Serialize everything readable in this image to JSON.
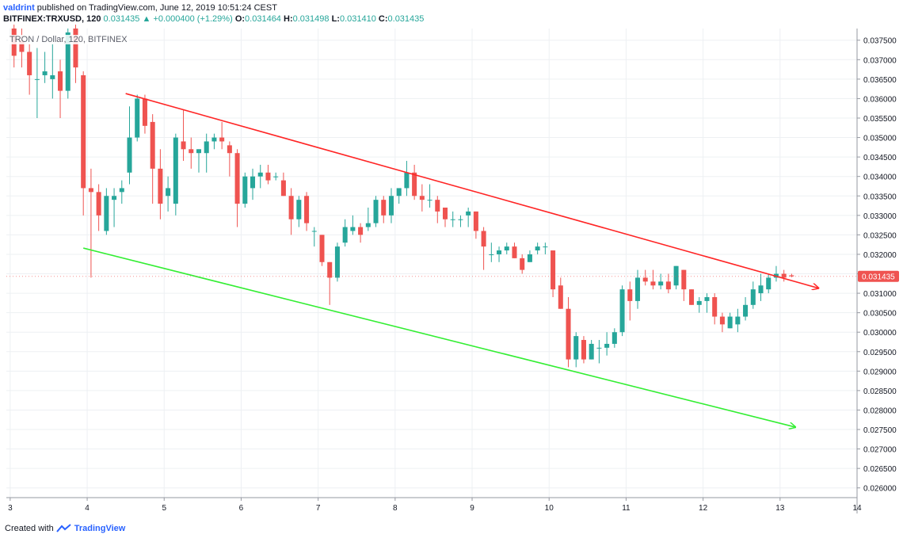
{
  "header": {
    "author": "valdrint",
    "published_text": "published on TradingView.com, June 12, 2019 10:51:24 CEST",
    "symbol": "BITFINEX:TRXUSD, 120",
    "last": "0.031435",
    "change": "+0.000400 (+1.29%)",
    "open_label": "O:",
    "open": "0.031464",
    "high_label": "H:",
    "high": "0.031498",
    "low_label": "L:",
    "low": "0.031410",
    "close_label": "C:",
    "close": "0.031435"
  },
  "legend_text": "TRON / Dollar, 120, BITFINEX",
  "footer": {
    "created_with": "Created with",
    "brand": "TradingView"
  },
  "chart_data": {
    "type": "candlestick",
    "x_ticks": [
      "3",
      "4",
      "5",
      "6",
      "7",
      "8",
      "9",
      "10",
      "11",
      "12",
      "13",
      "14"
    ],
    "y_ticks": [
      "0.037500",
      "0.037000",
      "0.036500",
      "0.036000",
      "0.035500",
      "0.035000",
      "0.034500",
      "0.034000",
      "0.033500",
      "0.033000",
      "0.032500",
      "0.032000",
      "0.031500",
      "0.031000",
      "0.030500",
      "0.030000",
      "0.029500",
      "0.029000",
      "0.028500",
      "0.028000",
      "0.027500",
      "0.027000",
      "0.026500",
      "0.026000"
    ],
    "ylim": [
      0.02575,
      0.0378
    ],
    "xlim": [
      2.95,
      14.0
    ],
    "current_price_label": "0.031435",
    "colors": {
      "up": "#26a69a",
      "down": "#ef5350",
      "upper_line": "#ff2525",
      "lower_line": "#33ee33",
      "price_tag": "#ef5350"
    },
    "candles": [
      {
        "t": 3.05,
        "o": 0.0378,
        "h": 0.0379,
        "l": 0.0368,
        "c": 0.0371
      },
      {
        "t": 3.15,
        "o": 0.0375,
        "h": 0.0378,
        "l": 0.0368,
        "c": 0.0372
      },
      {
        "t": 3.25,
        "o": 0.0372,
        "h": 0.0374,
        "l": 0.0361,
        "c": 0.0366
      },
      {
        "t": 3.35,
        "o": 0.0365,
        "h": 0.0373,
        "l": 0.0355,
        "c": 0.0365
      },
      {
        "t": 3.45,
        "o": 0.0366,
        "h": 0.0372,
        "l": 0.0364,
        "c": 0.0367
      },
      {
        "t": 3.55,
        "o": 0.0365,
        "h": 0.0374,
        "l": 0.036,
        "c": 0.0366
      },
      {
        "t": 3.65,
        "o": 0.0367,
        "h": 0.037,
        "l": 0.0355,
        "c": 0.0362
      },
      {
        "t": 3.75,
        "o": 0.0362,
        "h": 0.0378,
        "l": 0.036,
        "c": 0.0377
      },
      {
        "t": 3.85,
        "o": 0.0378,
        "h": 0.0379,
        "l": 0.0364,
        "c": 0.0368
      },
      {
        "t": 3.95,
        "o": 0.0366,
        "h": 0.0367,
        "l": 0.033,
        "c": 0.0337
      },
      {
        "t": 4.05,
        "o": 0.0337,
        "h": 0.0342,
        "l": 0.0314,
        "c": 0.0336
      },
      {
        "t": 4.15,
        "o": 0.0336,
        "h": 0.0338,
        "l": 0.0326,
        "c": 0.033
      },
      {
        "t": 4.25,
        "o": 0.0326,
        "h": 0.0337,
        "l": 0.0325,
        "c": 0.0335
      },
      {
        "t": 4.35,
        "o": 0.0334,
        "h": 0.0337,
        "l": 0.0327,
        "c": 0.0335
      },
      {
        "t": 4.45,
        "o": 0.0336,
        "h": 0.0339,
        "l": 0.0333,
        "c": 0.0337
      },
      {
        "t": 4.55,
        "o": 0.0341,
        "h": 0.0358,
        "l": 0.0338,
        "c": 0.035
      },
      {
        "t": 4.65,
        "o": 0.035,
        "h": 0.0361,
        "l": 0.0349,
        "c": 0.036
      },
      {
        "t": 4.75,
        "o": 0.036,
        "h": 0.0361,
        "l": 0.0351,
        "c": 0.0353
      },
      {
        "t": 4.85,
        "o": 0.0354,
        "h": 0.0356,
        "l": 0.0333,
        "c": 0.0342
      },
      {
        "t": 4.95,
        "o": 0.0342,
        "h": 0.0347,
        "l": 0.0329,
        "c": 0.0333
      },
      {
        "t": 5.05,
        "o": 0.0335,
        "h": 0.034,
        "l": 0.0331,
        "c": 0.0337
      },
      {
        "t": 5.15,
        "o": 0.0333,
        "h": 0.0351,
        "l": 0.033,
        "c": 0.035
      },
      {
        "t": 5.25,
        "o": 0.0349,
        "h": 0.0357,
        "l": 0.0344,
        "c": 0.0347
      },
      {
        "t": 5.35,
        "o": 0.0347,
        "h": 0.035,
        "l": 0.0342,
        "c": 0.0346
      },
      {
        "t": 5.45,
        "o": 0.0346,
        "h": 0.0347,
        "l": 0.0341,
        "c": 0.0347
      },
      {
        "t": 5.55,
        "o": 0.0346,
        "h": 0.0351,
        "l": 0.0341,
        "c": 0.0349
      },
      {
        "t": 5.65,
        "o": 0.0349,
        "h": 0.0351,
        "l": 0.0347,
        "c": 0.035
      },
      {
        "t": 5.75,
        "o": 0.035,
        "h": 0.0354,
        "l": 0.0347,
        "c": 0.0349
      },
      {
        "t": 5.85,
        "o": 0.0348,
        "h": 0.0349,
        "l": 0.034,
        "c": 0.0346
      },
      {
        "t": 5.95,
        "o": 0.0346,
        "h": 0.0347,
        "l": 0.0327,
        "c": 0.0333
      },
      {
        "t": 6.05,
        "o": 0.0333,
        "h": 0.0341,
        "l": 0.0332,
        "c": 0.034
      },
      {
        "t": 6.15,
        "o": 0.0337,
        "h": 0.0342,
        "l": 0.0334,
        "c": 0.034
      },
      {
        "t": 6.25,
        "o": 0.034,
        "h": 0.0343,
        "l": 0.0337,
        "c": 0.0341
      },
      {
        "t": 6.35,
        "o": 0.0341,
        "h": 0.0343,
        "l": 0.0338,
        "c": 0.0339
      },
      {
        "t": 6.45,
        "o": 0.034,
        "h": 0.0341,
        "l": 0.0339,
        "c": 0.034
      },
      {
        "t": 6.55,
        "o": 0.0339,
        "h": 0.0341,
        "l": 0.0335,
        "c": 0.0335
      },
      {
        "t": 6.65,
        "o": 0.0335,
        "h": 0.0337,
        "l": 0.0325,
        "c": 0.0329
      },
      {
        "t": 6.75,
        "o": 0.0329,
        "h": 0.0335,
        "l": 0.0327,
        "c": 0.0334
      },
      {
        "t": 6.85,
        "o": 0.0335,
        "h": 0.0336,
        "l": 0.0326,
        "c": 0.0328
      },
      {
        "t": 6.95,
        "o": 0.0326,
        "h": 0.0327,
        "l": 0.0322,
        "c": 0.0326
      },
      {
        "t": 7.05,
        "o": 0.0325,
        "h": 0.0325,
        "l": 0.0317,
        "c": 0.0318
      },
      {
        "t": 7.15,
        "o": 0.0318,
        "h": 0.0318,
        "l": 0.0307,
        "c": 0.0314
      },
      {
        "t": 7.25,
        "o": 0.0314,
        "h": 0.0323,
        "l": 0.0313,
        "c": 0.0322
      },
      {
        "t": 7.35,
        "o": 0.0323,
        "h": 0.0329,
        "l": 0.0322,
        "c": 0.0327
      },
      {
        "t": 7.45,
        "o": 0.0326,
        "h": 0.033,
        "l": 0.0325,
        "c": 0.0327
      },
      {
        "t": 7.55,
        "o": 0.0327,
        "h": 0.0328,
        "l": 0.0323,
        "c": 0.0325
      },
      {
        "t": 7.65,
        "o": 0.0327,
        "h": 0.0332,
        "l": 0.0326,
        "c": 0.0328
      },
      {
        "t": 7.75,
        "o": 0.0328,
        "h": 0.0335,
        "l": 0.0327,
        "c": 0.0334
      },
      {
        "t": 7.85,
        "o": 0.0334,
        "h": 0.0335,
        "l": 0.0328,
        "c": 0.033
      },
      {
        "t": 7.95,
        "o": 0.033,
        "h": 0.0337,
        "l": 0.0328,
        "c": 0.0335
      },
      {
        "t": 8.05,
        "o": 0.0335,
        "h": 0.0336,
        "l": 0.0333,
        "c": 0.0337
      },
      {
        "t": 8.15,
        "o": 0.0337,
        "h": 0.0344,
        "l": 0.0335,
        "c": 0.0341
      },
      {
        "t": 8.25,
        "o": 0.0341,
        "h": 0.0343,
        "l": 0.0334,
        "c": 0.0335
      },
      {
        "t": 8.35,
        "o": 0.0335,
        "h": 0.0338,
        "l": 0.0331,
        "c": 0.0334
      },
      {
        "t": 8.45,
        "o": 0.0334,
        "h": 0.0338,
        "l": 0.0332,
        "c": 0.0334
      },
      {
        "t": 8.55,
        "o": 0.0334,
        "h": 0.0335,
        "l": 0.0328,
        "c": 0.0331
      },
      {
        "t": 8.65,
        "o": 0.0332,
        "h": 0.0332,
        "l": 0.0327,
        "c": 0.0329
      },
      {
        "t": 8.75,
        "o": 0.0329,
        "h": 0.0331,
        "l": 0.0327,
        "c": 0.0329
      },
      {
        "t": 8.85,
        "o": 0.0329,
        "h": 0.033,
        "l": 0.0327,
        "c": 0.0329
      },
      {
        "t": 8.95,
        "o": 0.033,
        "h": 0.0332,
        "l": 0.0327,
        "c": 0.0331
      },
      {
        "t": 9.05,
        "o": 0.0331,
        "h": 0.0331,
        "l": 0.0324,
        "c": 0.0326
      },
      {
        "t": 9.15,
        "o": 0.0326,
        "h": 0.0327,
        "l": 0.0316,
        "c": 0.0322
      },
      {
        "t": 9.25,
        "o": 0.032,
        "h": 0.0323,
        "l": 0.0318,
        "c": 0.032
      },
      {
        "t": 9.35,
        "o": 0.032,
        "h": 0.0322,
        "l": 0.0318,
        "c": 0.0321
      },
      {
        "t": 9.45,
        "o": 0.0321,
        "h": 0.0323,
        "l": 0.032,
        "c": 0.0322
      },
      {
        "t": 9.55,
        "o": 0.0322,
        "h": 0.0323,
        "l": 0.0319,
        "c": 0.0319
      },
      {
        "t": 9.65,
        "o": 0.0319,
        "h": 0.032,
        "l": 0.0315,
        "c": 0.0316
      },
      {
        "t": 9.75,
        "o": 0.0318,
        "h": 0.0321,
        "l": 0.0318,
        "c": 0.032
      },
      {
        "t": 9.85,
        "o": 0.0321,
        "h": 0.0323,
        "l": 0.032,
        "c": 0.0322
      },
      {
        "t": 9.95,
        "o": 0.0322,
        "h": 0.0323,
        "l": 0.032,
        "c": 0.0322
      },
      {
        "t": 10.05,
        "o": 0.0321,
        "h": 0.0321,
        "l": 0.0309,
        "c": 0.0311
      },
      {
        "t": 10.15,
        "o": 0.0312,
        "h": 0.0314,
        "l": 0.0306,
        "c": 0.0306
      },
      {
        "t": 10.25,
        "o": 0.0306,
        "h": 0.0309,
        "l": 0.0291,
        "c": 0.0293
      },
      {
        "t": 10.35,
        "o": 0.0293,
        "h": 0.03,
        "l": 0.0291,
        "c": 0.0299
      },
      {
        "t": 10.45,
        "o": 0.0298,
        "h": 0.0299,
        "l": 0.0292,
        "c": 0.0293
      },
      {
        "t": 10.55,
        "o": 0.0293,
        "h": 0.0298,
        "l": 0.0293,
        "c": 0.0297
      },
      {
        "t": 10.65,
        "o": 0.0296,
        "h": 0.0298,
        "l": 0.0292,
        "c": 0.0296
      },
      {
        "t": 10.75,
        "o": 0.0296,
        "h": 0.03,
        "l": 0.0294,
        "c": 0.0297
      },
      {
        "t": 10.85,
        "o": 0.0297,
        "h": 0.0301,
        "l": 0.0296,
        "c": 0.03
      },
      {
        "t": 10.95,
        "o": 0.03,
        "h": 0.0312,
        "l": 0.0299,
        "c": 0.0311
      },
      {
        "t": 11.05,
        "o": 0.0311,
        "h": 0.0313,
        "l": 0.0303,
        "c": 0.0308
      },
      {
        "t": 11.15,
        "o": 0.0308,
        "h": 0.0316,
        "l": 0.0306,
        "c": 0.0314
      },
      {
        "t": 11.25,
        "o": 0.0314,
        "h": 0.0316,
        "l": 0.0312,
        "c": 0.0313
      },
      {
        "t": 11.35,
        "o": 0.0313,
        "h": 0.0316,
        "l": 0.0311,
        "c": 0.0312
      },
      {
        "t": 11.45,
        "o": 0.0312,
        "h": 0.0315,
        "l": 0.0311,
        "c": 0.0313
      },
      {
        "t": 11.55,
        "o": 0.0313,
        "h": 0.0315,
        "l": 0.031,
        "c": 0.0311
      },
      {
        "t": 11.65,
        "o": 0.0312,
        "h": 0.0317,
        "l": 0.0311,
        "c": 0.0317
      },
      {
        "t": 11.75,
        "o": 0.0316,
        "h": 0.0316,
        "l": 0.0308,
        "c": 0.0311
      },
      {
        "t": 11.85,
        "o": 0.0311,
        "h": 0.0311,
        "l": 0.0307,
        "c": 0.0307
      },
      {
        "t": 11.95,
        "o": 0.0307,
        "h": 0.0309,
        "l": 0.0305,
        "c": 0.0308
      },
      {
        "t": 12.05,
        "o": 0.0308,
        "h": 0.031,
        "l": 0.0305,
        "c": 0.0309
      },
      {
        "t": 12.15,
        "o": 0.0309,
        "h": 0.031,
        "l": 0.0302,
        "c": 0.0304
      },
      {
        "t": 12.25,
        "o": 0.0304,
        "h": 0.0305,
        "l": 0.03,
        "c": 0.0302
      },
      {
        "t": 12.35,
        "o": 0.0301,
        "h": 0.0305,
        "l": 0.0301,
        "c": 0.0304
      },
      {
        "t": 12.45,
        "o": 0.0302,
        "h": 0.0306,
        "l": 0.03,
        "c": 0.0304
      },
      {
        "t": 12.55,
        "o": 0.0304,
        "h": 0.0309,
        "l": 0.0303,
        "c": 0.0307
      },
      {
        "t": 12.65,
        "o": 0.0307,
        "h": 0.0313,
        "l": 0.0306,
        "c": 0.0311
      },
      {
        "t": 12.75,
        "o": 0.031,
        "h": 0.0315,
        "l": 0.0308,
        "c": 0.0312
      },
      {
        "t": 12.85,
        "o": 0.0311,
        "h": 0.0315,
        "l": 0.031,
        "c": 0.0314
      },
      {
        "t": 12.95,
        "o": 0.0314,
        "h": 0.0317,
        "l": 0.0313,
        "c": 0.0315
      },
      {
        "t": 13.05,
        "o": 0.0315,
        "h": 0.0316,
        "l": 0.0313,
        "c": 0.0314
      },
      {
        "t": 13.15,
        "o": 0.03146,
        "h": 0.0315,
        "l": 0.03141,
        "c": 0.031435
      }
    ],
    "trendlines": [
      {
        "name": "upper",
        "x1": 4.5,
        "y1": 0.03613,
        "x2": 13.5,
        "y2": 0.03113,
        "color": "#ff2525"
      },
      {
        "name": "lower",
        "x1": 3.95,
        "y1": 0.03216,
        "x2": 13.2,
        "y2": 0.02756,
        "color": "#33ee33"
      }
    ]
  }
}
